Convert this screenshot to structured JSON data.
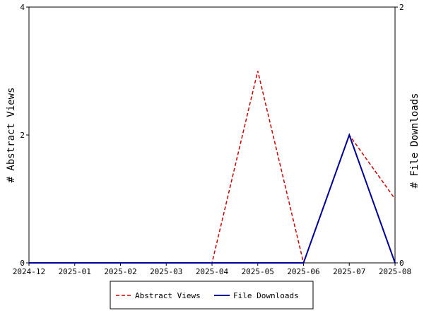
{
  "chart_data": {
    "type": "line",
    "x": [
      "2024-12",
      "2025-01",
      "2025-02",
      "2025-03",
      "2025-04",
      "2025-05",
      "2025-06",
      "2025-07",
      "2025-08"
    ],
    "series": [
      {
        "name": "Abstract Views",
        "axis": "left",
        "values": [
          0,
          0,
          0,
          0,
          0,
          3,
          0,
          2,
          1
        ],
        "color": "#cc0000",
        "style": "dashed"
      },
      {
        "name": "File Downloads",
        "axis": "right",
        "values": [
          0,
          0,
          0,
          0,
          0,
          0,
          0,
          1,
          0
        ],
        "color": "#000099",
        "style": "solid"
      }
    ],
    "ylabel_left": "# Abstract Views",
    "ylabel_right": "# File Downloads",
    "ylim_left": [
      0,
      4
    ],
    "ylim_right": [
      0,
      2
    ],
    "yticks_left": [
      "0",
      "2",
      "4"
    ],
    "yticks_right": [
      "0",
      "2"
    ],
    "legend_position": "bottom-center",
    "grid": false
  }
}
